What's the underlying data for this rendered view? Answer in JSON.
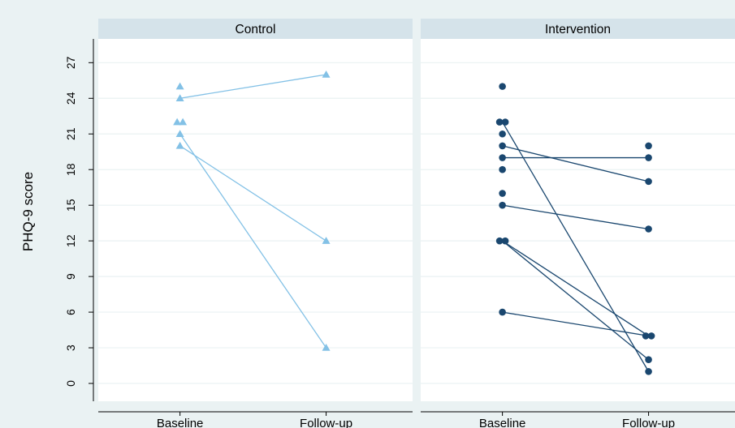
{
  "chart_data": {
    "type": "scatter",
    "ylabel": "PHQ-9 score",
    "ylim": [
      -1.5,
      29
    ],
    "yticks": [
      0,
      3,
      6,
      9,
      12,
      15,
      18,
      21,
      24,
      27
    ],
    "categories": [
      "Baseline",
      "Follow-up"
    ],
    "grid": true,
    "panels": [
      {
        "title": "Control",
        "marker": "triangle",
        "color": "#83c1e6",
        "points": [
          {
            "x": "Baseline",
            "y": 25
          },
          {
            "x": "Baseline",
            "y": 24
          },
          {
            "x": "Baseline",
            "y": 22
          },
          {
            "x": "Baseline",
            "y": 22
          },
          {
            "x": "Baseline",
            "y": 21
          },
          {
            "x": "Baseline",
            "y": 20
          },
          {
            "x": "Follow-up",
            "y": 26
          },
          {
            "x": "Follow-up",
            "y": 12
          },
          {
            "x": "Follow-up",
            "y": 3
          }
        ],
        "pairs": [
          [
            24,
            26
          ],
          [
            21,
            3
          ],
          [
            20,
            12
          ]
        ]
      },
      {
        "title": "Intervention",
        "marker": "circle",
        "color": "#1a476f",
        "points": [
          {
            "x": "Baseline",
            "y": 25
          },
          {
            "x": "Baseline",
            "y": 22
          },
          {
            "x": "Baseline",
            "y": 22
          },
          {
            "x": "Baseline",
            "y": 21
          },
          {
            "x": "Baseline",
            "y": 20
          },
          {
            "x": "Baseline",
            "y": 19
          },
          {
            "x": "Baseline",
            "y": 18
          },
          {
            "x": "Baseline",
            "y": 16
          },
          {
            "x": "Baseline",
            "y": 15
          },
          {
            "x": "Baseline",
            "y": 12
          },
          {
            "x": "Baseline",
            "y": 12
          },
          {
            "x": "Baseline",
            "y": 6
          },
          {
            "x": "Follow-up",
            "y": 20
          },
          {
            "x": "Follow-up",
            "y": 19
          },
          {
            "x": "Follow-up",
            "y": 17
          },
          {
            "x": "Follow-up",
            "y": 13
          },
          {
            "x": "Follow-up",
            "y": 4
          },
          {
            "x": "Follow-up",
            "y": 4
          },
          {
            "x": "Follow-up",
            "y": 2
          },
          {
            "x": "Follow-up",
            "y": 1
          }
        ],
        "pairs": [
          [
            22,
            1
          ],
          [
            20,
            17
          ],
          [
            19,
            19
          ],
          [
            15,
            13
          ],
          [
            12,
            4
          ],
          [
            12,
            2
          ],
          [
            6,
            4
          ]
        ]
      }
    ]
  }
}
